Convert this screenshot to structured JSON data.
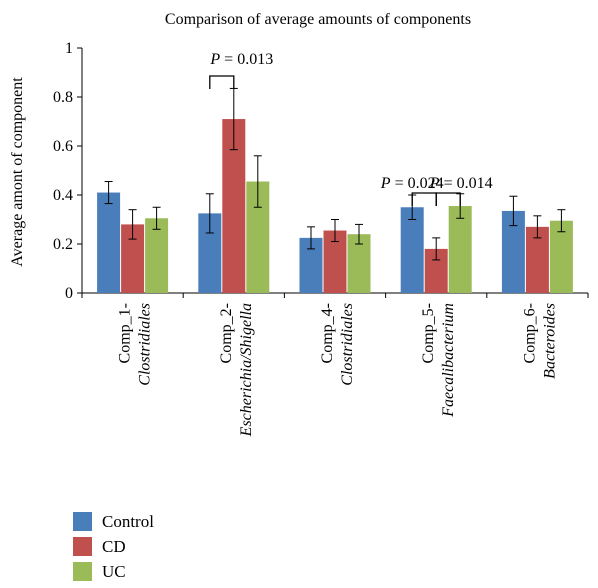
{
  "chart_data": {
    "type": "bar",
    "title": "Comparison of average amounts of components",
    "ylabel": "Average amont of component",
    "xlabel": "",
    "ylim": [
      0,
      1
    ],
    "yticks": [
      "0",
      "0.2",
      "0.4",
      "0.6",
      "0.8",
      "1"
    ],
    "categories": [
      {
        "line1": "Comp_1-",
        "line2": "Clostridiales"
      },
      {
        "line1": "Comp_2-",
        "line2": "Escherichia/Shigella"
      },
      {
        "line1": "Comp_4-",
        "line2": "Clostridiales"
      },
      {
        "line1": "Comp_5-",
        "line2": "Faecalibacterium"
      },
      {
        "line1": "Comp_6-",
        "line2": "Bacteroides"
      }
    ],
    "series": [
      {
        "name": "Control",
        "color": "#4a7ebb",
        "values": [
          0.41,
          0.325,
          0.225,
          0.35,
          0.335
        ],
        "errors": [
          0.045,
          0.08,
          0.045,
          0.05,
          0.06
        ]
      },
      {
        "name": "CD",
        "color": "#c0504d",
        "values": [
          0.28,
          0.71,
          0.255,
          0.18,
          0.27
        ],
        "errors": [
          0.06,
          0.125,
          0.045,
          0.045,
          0.045
        ]
      },
      {
        "name": "UC",
        "color": "#9bbb59",
        "values": [
          0.305,
          0.455,
          0.24,
          0.355,
          0.295
        ],
        "errors": [
          0.045,
          0.105,
          0.04,
          0.05,
          0.045
        ]
      }
    ],
    "annotations": [
      {
        "prefix": "P",
        "text": " = 0.013",
        "category": 1,
        "from_series": 0,
        "to_series": 1
      },
      {
        "prefix": "P",
        "text": " = 0.024",
        "category": 3,
        "from_series": 0,
        "to_series": 1
      },
      {
        "prefix": "P",
        "text": " = 0.014",
        "category": 3,
        "from_series": 1,
        "to_series": 2
      }
    ],
    "grid": false,
    "legend_position": "bottom-left"
  }
}
